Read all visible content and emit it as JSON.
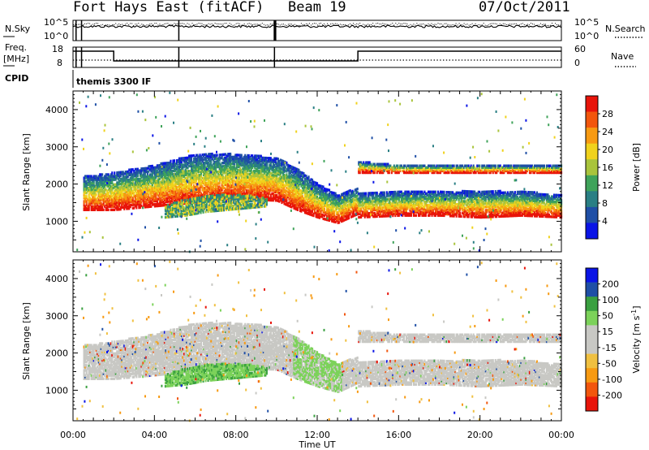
{
  "header": {
    "station": "Fort Hays East (fitACF)",
    "beam": "Beam 19",
    "date": "07/Oct/2011"
  },
  "strips": {
    "nsky": {
      "label": "N.Sky",
      "top": "10^5",
      "bottom": "10^0"
    },
    "nsearch": {
      "label": "N.Search",
      "top": "10^5",
      "bottom": "10^0"
    },
    "freq": {
      "label1": "Freq.",
      "label2": "[MHz]",
      "top": "18",
      "bottom": "8"
    },
    "nave": {
      "label": "Nave",
      "top": "60",
      "bottom": "0"
    },
    "cpid": {
      "label": "CPID",
      "program": "themis 3300 IF"
    }
  },
  "colors": {
    "power_scale": [
      "#0a14e6",
      "#1f4fa6",
      "#2a7f84",
      "#3fa35a",
      "#a9c43c",
      "#f0d21c",
      "#f79a12",
      "#f2560d",
      "#e8140a"
    ],
    "velocity_scale": [
      "#e8140a",
      "#f2560d",
      "#f79a12",
      "#f0c040",
      "#c8c8c4",
      "#c8c8c4",
      "#7cd25a",
      "#3aa040",
      "#1f4fa6",
      "#0a14e6"
    ],
    "ground_scatter": "#c8c8c4"
  },
  "chart_data": [
    {
      "type": "heatmap",
      "name": "power",
      "ylabel": "Slant Range [km]",
      "ylim": [
        180,
        4500
      ],
      "yticks": [
        "1000",
        "2000",
        "3000",
        "4000"
      ],
      "xlim_hours": [
        0,
        24
      ],
      "colorbar": {
        "label": "Power [dB]",
        "ticks": [
          "4",
          "8",
          "12",
          "16",
          "20",
          "24",
          "28"
        ],
        "range": [
          0,
          30
        ]
      },
      "scatter_bands": [
        {
          "desc": "main",
          "t": [
            0.5,
            2,
            4,
            6,
            8,
            10,
            11,
            12,
            13,
            14
          ],
          "lower": [
            1300,
            1300,
            1400,
            1500,
            1600,
            1550,
            1300,
            1100,
            950,
            1200
          ],
          "upper": [
            2200,
            2300,
            2500,
            2800,
            2800,
            2700,
            2400,
            2000,
            1700,
            1900
          ]
        },
        {
          "desc": "late",
          "t": [
            14,
            16,
            18,
            20,
            22,
            24
          ],
          "lower": [
            1100,
            1150,
            1150,
            1100,
            1150,
            1100
          ],
          "upper": [
            1750,
            1800,
            1800,
            1800,
            1800,
            1700
          ]
        },
        {
          "desc": "upper-late",
          "t": [
            14,
            16,
            18,
            20,
            22,
            24
          ],
          "lower": [
            2300,
            2300,
            2300,
            2300,
            2300,
            2300
          ],
          "upper": [
            2600,
            2500,
            2500,
            2500,
            2500,
            2500
          ]
        },
        {
          "desc": "lower-patch",
          "t": [
            4.5,
            5.5,
            6.5,
            7.5,
            8.5,
            9.5
          ],
          "lower": [
            1100,
            1150,
            1250,
            1300,
            1350,
            1400
          ],
          "upper": [
            1400,
            1600,
            1700,
            1700,
            1700,
            1600
          ]
        }
      ]
    },
    {
      "type": "heatmap",
      "name": "velocity",
      "ylabel": "Slant Range [km]",
      "ylim": [
        180,
        4500
      ],
      "yticks": [
        "1000",
        "2000",
        "3000",
        "4000"
      ],
      "xlabel": "Time UT",
      "xticks": [
        "00:00",
        "04:00",
        "08:00",
        "12:00",
        "16:00",
        "20:00",
        "00:00"
      ],
      "colorbar": {
        "label": "Velocity [m s",
        "exp": "-1",
        "close": "]",
        "ticks": [
          "200",
          "100",
          "50",
          "15",
          "-15",
          "-50",
          "-100",
          "-200"
        ],
        "range": [
          -250,
          250
        ]
      }
    }
  ]
}
